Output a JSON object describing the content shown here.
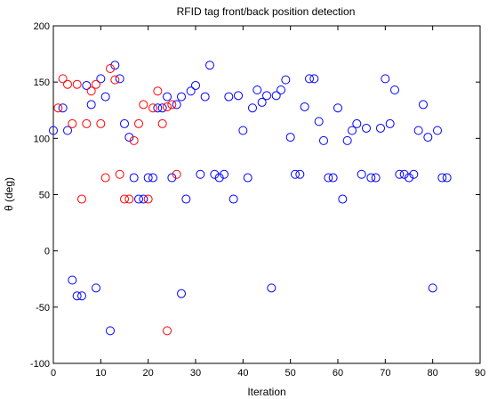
{
  "chart_data": {
    "type": "scatter",
    "title": "RFID tag front/back position detection",
    "xlabel": "Iteration",
    "ylabel": "θ (deg)",
    "xlim": [
      0,
      90
    ],
    "ylim": [
      -100,
      200
    ],
    "xticks": [
      0,
      10,
      20,
      30,
      40,
      50,
      60,
      70,
      80,
      90
    ],
    "yticks": [
      -100,
      -50,
      0,
      50,
      100,
      150,
      200
    ],
    "grid": false,
    "legend": "none",
    "marker": "open-circle",
    "series": [
      {
        "color": "#0000ff",
        "points": [
          [
            0,
            107
          ],
          [
            2,
            127
          ],
          [
            3,
            107
          ],
          [
            4,
            -26
          ],
          [
            5,
            -40
          ],
          [
            6,
            -40
          ],
          [
            7,
            147
          ],
          [
            8,
            130
          ],
          [
            9,
            -33
          ],
          [
            10,
            153
          ],
          [
            11,
            137
          ],
          [
            12,
            -71
          ],
          [
            13,
            165
          ],
          [
            14,
            153
          ],
          [
            15,
            113
          ],
          [
            16,
            101
          ],
          [
            17,
            65
          ],
          [
            18,
            46
          ],
          [
            19,
            46
          ],
          [
            20,
            65
          ],
          [
            21,
            65
          ],
          [
            22,
            127
          ],
          [
            23,
            127
          ],
          [
            24,
            137
          ],
          [
            25,
            65
          ],
          [
            26,
            130
          ],
          [
            27,
            137
          ],
          [
            27,
            -38
          ],
          [
            28,
            46
          ],
          [
            29,
            142
          ],
          [
            30,
            147
          ],
          [
            31,
            68
          ],
          [
            32,
            137
          ],
          [
            33,
            165
          ],
          [
            34,
            68
          ],
          [
            35,
            65
          ],
          [
            36,
            68
          ],
          [
            37,
            137
          ],
          [
            38,
            46
          ],
          [
            39,
            138
          ],
          [
            40,
            107
          ],
          [
            41,
            65
          ],
          [
            42,
            127
          ],
          [
            43,
            143
          ],
          [
            44,
            132
          ],
          [
            45,
            138
          ],
          [
            46,
            -33
          ],
          [
            47,
            138
          ],
          [
            48,
            143
          ],
          [
            49,
            152
          ],
          [
            50,
            101
          ],
          [
            51,
            68
          ],
          [
            52,
            68
          ],
          [
            53,
            128
          ],
          [
            54,
            153
          ],
          [
            55,
            153
          ],
          [
            56,
            115
          ],
          [
            57,
            98
          ],
          [
            58,
            65
          ],
          [
            59,
            65
          ],
          [
            60,
            127
          ],
          [
            61,
            46
          ],
          [
            62,
            98
          ],
          [
            63,
            107
          ],
          [
            64,
            113
          ],
          [
            65,
            68
          ],
          [
            66,
            109
          ],
          [
            67,
            65
          ],
          [
            68,
            65
          ],
          [
            69,
            109
          ],
          [
            70,
            153
          ],
          [
            71,
            113
          ],
          [
            72,
            143
          ],
          [
            73,
            68
          ],
          [
            74,
            68
          ],
          [
            75,
            65
          ],
          [
            76,
            68
          ],
          [
            77,
            107
          ],
          [
            78,
            130
          ],
          [
            79,
            101
          ],
          [
            80,
            -33
          ],
          [
            81,
            107
          ],
          [
            82,
            65
          ],
          [
            83,
            65
          ]
        ]
      },
      {
        "color": "#ff0000",
        "points": [
          [
            1,
            127
          ],
          [
            2,
            153
          ],
          [
            3,
            148
          ],
          [
            4,
            113
          ],
          [
            5,
            148
          ],
          [
            6,
            46
          ],
          [
            7,
            113
          ],
          [
            8,
            142
          ],
          [
            9,
            148
          ],
          [
            10,
            113
          ],
          [
            11,
            65
          ],
          [
            12,
            162
          ],
          [
            13,
            152
          ],
          [
            14,
            68
          ],
          [
            15,
            46
          ],
          [
            16,
            46
          ],
          [
            17,
            98
          ],
          [
            18,
            113
          ],
          [
            19,
            130
          ],
          [
            20,
            46
          ],
          [
            21,
            127
          ],
          [
            22,
            142
          ],
          [
            23,
            113
          ],
          [
            24,
            128
          ],
          [
            24,
            -71
          ],
          [
            25,
            130
          ],
          [
            26,
            68
          ]
        ]
      }
    ]
  }
}
